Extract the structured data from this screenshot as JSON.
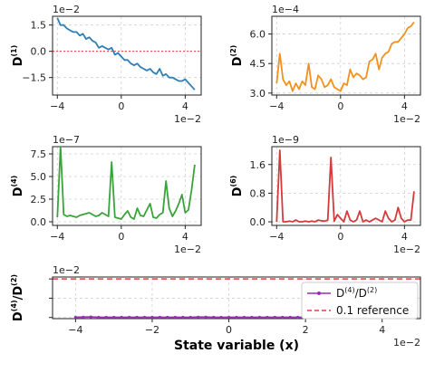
{
  "chart_data": [
    {
      "id": "d1",
      "type": "line",
      "ylabel": "D",
      "ylabel_sup": "(1)",
      "y_scale_label": "1e−2",
      "x_scale_label": "1e−2",
      "xlim": [
        -4.3,
        5.0
      ],
      "ylim": [
        -2.5,
        2.0
      ],
      "xticks": [
        -4,
        0,
        4
      ],
      "xticklabels": [
        "−4",
        "0",
        "4"
      ],
      "yticks": [
        -1.5,
        0.0,
        1.5
      ],
      "yticklabels": [
        "−1.5",
        "0.0",
        "1.5"
      ],
      "grid": true,
      "color": "#2e7fb5",
      "reference_line": {
        "y": 0,
        "color": "#e0403f"
      },
      "x": [
        -4.0,
        -3.8,
        -3.6,
        -3.4,
        -3.2,
        -3.0,
        -2.8,
        -2.6,
        -2.4,
        -2.2,
        -2.0,
        -1.8,
        -1.6,
        -1.4,
        -1.2,
        -1.0,
        -0.8,
        -0.6,
        -0.4,
        -0.2,
        0.0,
        0.2,
        0.4,
        0.6,
        0.8,
        1.0,
        1.2,
        1.4,
        1.6,
        1.8,
        2.0,
        2.2,
        2.4,
        2.6,
        2.8,
        3.0,
        3.2,
        3.4,
        3.6,
        3.8,
        4.0,
        4.2,
        4.4,
        4.6
      ],
      "values": [
        1.9,
        1.5,
        1.5,
        1.3,
        1.2,
        1.1,
        1.1,
        0.9,
        1.0,
        0.7,
        0.8,
        0.6,
        0.5,
        0.2,
        0.3,
        0.2,
        0.1,
        0.2,
        -0.2,
        -0.1,
        -0.3,
        -0.5,
        -0.5,
        -0.7,
        -0.8,
        -0.7,
        -0.9,
        -1.0,
        -1.1,
        -1.0,
        -1.2,
        -1.3,
        -1.0,
        -1.4,
        -1.3,
        -1.5,
        -1.5,
        -1.6,
        -1.7,
        -1.7,
        -1.6,
        -1.8,
        -2.0,
        -2.2
      ]
    },
    {
      "id": "d2",
      "type": "line",
      "ylabel": "D",
      "ylabel_sup": "(2)",
      "y_scale_label": "1e−4",
      "x_scale_label": "1e−2",
      "xlim": [
        -4.3,
        5.0
      ],
      "ylim": [
        2.9,
        6.9
      ],
      "xticks": [
        -4,
        0,
        4
      ],
      "xticklabels": [
        "−4",
        "0",
        "4"
      ],
      "yticks": [
        3.0,
        4.5,
        6.0
      ],
      "yticklabels": [
        "3.0",
        "4.5",
        "6.0"
      ],
      "grid": true,
      "color": "#f2911c",
      "x": [
        -4.0,
        -3.8,
        -3.6,
        -3.4,
        -3.2,
        -3.0,
        -2.8,
        -2.6,
        -2.4,
        -2.2,
        -2.0,
        -1.8,
        -1.6,
        -1.4,
        -1.2,
        -1.0,
        -0.8,
        -0.6,
        -0.4,
        -0.2,
        0.0,
        0.2,
        0.4,
        0.6,
        0.8,
        1.0,
        1.2,
        1.4,
        1.6,
        1.8,
        2.0,
        2.2,
        2.4,
        2.6,
        2.8,
        3.0,
        3.2,
        3.4,
        3.6,
        3.8,
        4.0,
        4.2,
        4.4,
        4.6
      ],
      "values": [
        3.5,
        5.0,
        3.7,
        3.4,
        3.6,
        3.1,
        3.5,
        3.2,
        3.6,
        3.4,
        4.5,
        3.3,
        3.2,
        3.9,
        3.7,
        3.3,
        3.4,
        3.7,
        3.3,
        3.2,
        3.1,
        3.5,
        3.4,
        4.2,
        3.8,
        4.0,
        3.9,
        3.7,
        3.8,
        4.6,
        4.7,
        5.0,
        4.2,
        4.8,
        5.0,
        5.1,
        5.5,
        5.6,
        5.6,
        5.8,
        6.0,
        6.3,
        6.4,
        6.6
      ]
    },
    {
      "id": "d4",
      "type": "line",
      "ylabel": "D",
      "ylabel_sup": "(4)",
      "y_scale_label": "1e−7",
      "x_scale_label": "1e−2",
      "xlim": [
        -4.3,
        5.0
      ],
      "ylim": [
        -0.4,
        8.3
      ],
      "xticks": [
        -4,
        0,
        4
      ],
      "xticklabels": [
        "−4",
        "0",
        "4"
      ],
      "yticks": [
        0.0,
        2.5,
        5.0,
        7.5
      ],
      "yticklabels": [
        "0.0",
        "2.5",
        "5.0",
        "7.5"
      ],
      "grid": true,
      "color": "#3aa33a",
      "x": [
        -4.0,
        -3.8,
        -3.6,
        -3.4,
        -3.2,
        -3.0,
        -2.8,
        -2.6,
        -2.4,
        -2.2,
        -2.0,
        -1.8,
        -1.6,
        -1.4,
        -1.2,
        -1.0,
        -0.8,
        -0.6,
        -0.4,
        -0.2,
        0.0,
        0.2,
        0.4,
        0.6,
        0.8,
        1.0,
        1.2,
        1.4,
        1.6,
        1.8,
        2.0,
        2.2,
        2.4,
        2.6,
        2.8,
        3.0,
        3.2,
        3.4,
        3.6,
        3.8,
        4.0,
        4.2,
        4.4,
        4.6
      ],
      "values": [
        0.5,
        8.3,
        0.8,
        0.6,
        0.7,
        0.6,
        0.5,
        0.7,
        0.8,
        0.9,
        1.0,
        0.8,
        0.6,
        0.7,
        1.0,
        0.8,
        0.6,
        6.6,
        0.5,
        0.4,
        0.3,
        0.8,
        1.2,
        0.5,
        0.3,
        1.5,
        0.7,
        0.6,
        1.3,
        2.0,
        0.5,
        0.4,
        0.8,
        1.0,
        4.5,
        1.5,
        0.6,
        1.2,
        2.0,
        3.0,
        1.0,
        1.3,
        3.5,
        6.3
      ]
    },
    {
      "id": "d6",
      "type": "line",
      "ylabel": "D",
      "ylabel_sup": "(6)",
      "y_scale_label": "1e−9",
      "x_scale_label": "1e−2",
      "xlim": [
        -4.3,
        5.0
      ],
      "ylim": [
        -0.1,
        2.1
      ],
      "xticks": [
        -4,
        0,
        4
      ],
      "xticklabels": [
        "−4",
        "0",
        "4"
      ],
      "yticks": [
        0.0,
        0.8,
        1.6
      ],
      "yticklabels": [
        "0.0",
        "0.8",
        "1.6"
      ],
      "grid": true,
      "color": "#d43b3b",
      "x": [
        -4.0,
        -3.8,
        -3.6,
        -3.4,
        -3.2,
        -3.0,
        -2.8,
        -2.6,
        -2.4,
        -2.2,
        -2.0,
        -1.8,
        -1.6,
        -1.4,
        -1.2,
        -1.0,
        -0.8,
        -0.6,
        -0.4,
        -0.2,
        0.0,
        0.2,
        0.4,
        0.6,
        0.8,
        1.0,
        1.2,
        1.4,
        1.6,
        1.8,
        2.0,
        2.2,
        2.4,
        2.6,
        2.8,
        3.0,
        3.2,
        3.4,
        3.6,
        3.8,
        4.0,
        4.2,
        4.4,
        4.6
      ],
      "values": [
        0.0,
        2.0,
        0.0,
        0.0,
        0.02,
        0.0,
        0.05,
        0.0,
        0.0,
        0.02,
        0.0,
        0.02,
        0.0,
        0.05,
        0.03,
        0.02,
        0.05,
        1.8,
        0.02,
        0.2,
        0.1,
        0.0,
        0.3,
        0.05,
        0.0,
        0.05,
        0.3,
        0.0,
        0.05,
        0.0,
        0.05,
        0.1,
        0.05,
        0.0,
        0.3,
        0.1,
        0.0,
        0.05,
        0.4,
        0.1,
        0.0,
        0.05,
        0.05,
        0.85
      ]
    },
    {
      "id": "ratio",
      "type": "line",
      "ylabel": "D",
      "ylabel_sup": "(4)",
      "ylabel_tail": "/D",
      "ylabel_sup2": "(2)",
      "y_scale_label": "1e−2",
      "x_scale_label": "1e−2",
      "xlabel": "State variable (x)",
      "xlim": [
        -4.6,
        5.0
      ],
      "ylim": [
        -0.3,
        10.5
      ],
      "xticks": [
        -4,
        -2,
        0,
        2,
        4
      ],
      "xticklabels": [
        "−4",
        "−2",
        "0",
        "2",
        "4"
      ],
      "yticks": [
        0,
        5,
        10
      ],
      "yticklabels": [
        "",
        "",
        ""
      ],
      "grid": true,
      "color": "#9a2fb5",
      "reference_line": {
        "y": 10,
        "color": "#e0403f"
      },
      "legend": {
        "placement": "right",
        "entries": [
          {
            "label": "D",
            "sup": "(4)",
            "tail": "/D",
            "sup2": "(2)",
            "color": "#9a2fb5",
            "style": "marker-line"
          },
          {
            "label": "0.1 reference",
            "color": "#e0403f",
            "style": "dashed"
          }
        ]
      },
      "x": [
        -4.0,
        -3.8,
        -3.6,
        -3.4,
        -3.2,
        -3.0,
        -2.8,
        -2.6,
        -2.4,
        -2.2,
        -2.0,
        -1.8,
        -1.6,
        -1.4,
        -1.2,
        -1.0,
        -0.8,
        -0.6,
        -0.4,
        -0.2,
        0.0,
        0.2,
        0.4,
        0.6,
        0.8,
        1.0,
        1.2,
        1.4,
        1.6,
        1.8,
        2.0,
        2.2,
        2.4,
        2.6,
        2.8,
        3.0,
        3.2,
        3.4,
        3.6,
        3.8,
        4.0,
        4.2,
        4.4,
        4.6
      ],
      "values": [
        0.05,
        0.1,
        0.15,
        0.05,
        0.05,
        0.05,
        0.05,
        0.05,
        0.05,
        0.05,
        0.05,
        0.05,
        0.05,
        0.05,
        0.05,
        0.05,
        0.1,
        0.1,
        0.05,
        0.05,
        0.05,
        0.05,
        0.05,
        0.05,
        0.05,
        0.05,
        0.05,
        0.05,
        0.05,
        0.05,
        0.05,
        0.05,
        0.05,
        0.05,
        0.05,
        0.05,
        0.05,
        0.05,
        0.05,
        0.05,
        0.05,
        0.05,
        0.05,
        0.1
      ]
    }
  ]
}
